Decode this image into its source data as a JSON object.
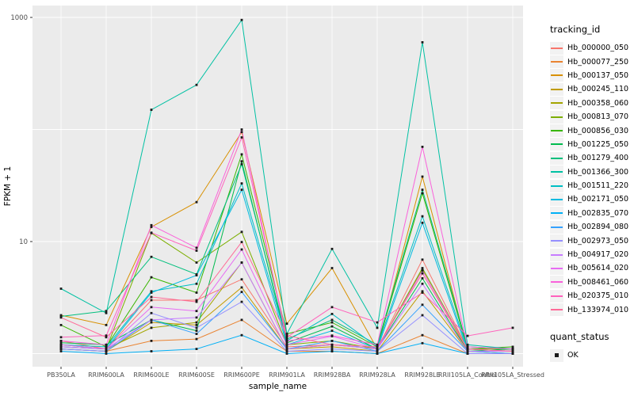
{
  "figure": {
    "background": "#ffffff",
    "panel_background": "#EBEBEB",
    "gridline_color": "#FFFFFF",
    "tick_label_color": "#4D4D4D",
    "marker_color": "#1a1a1a"
  },
  "legend": {
    "tracking_title": "tracking_id",
    "quant_title": "quant_status",
    "quant_entry": "OK"
  },
  "chart_data": {
    "type": "line",
    "title": "",
    "xlabel": "sample_name",
    "ylabel": "FPKM + 1",
    "y_scale": "log10",
    "y_tick_labels": [
      "1000",
      "10"
    ],
    "y_tick_values": [
      1000,
      10
    ],
    "y_gridlines": [
      1,
      10,
      100,
      1000
    ],
    "ylim_log": [
      0.88,
      1100
    ],
    "legend_position": "right",
    "grid": true,
    "point_shape": "filled-square",
    "categories": [
      "PB350LA",
      "RRIM600LA",
      "RRIM600LE",
      "RRIM600SE",
      "RRIM600PE",
      "RRIM901LA",
      "RRIM928BA",
      "RRIM928LA",
      "RRIM928LE",
      "RRII105LA_Control",
      "RRII105LA_Stressed"
    ],
    "series": [
      {
        "name": "Hb_000000_050",
        "color": "#F8766D",
        "values": [
          1.3,
          1.1,
          3.0,
          3.0,
          4.6,
          1.15,
          1.2,
          1.1,
          6.9,
          1.1,
          1.05
        ]
      },
      {
        "name": "Hb_000077_250",
        "color": "#EA8331",
        "values": [
          1.1,
          1.05,
          1.3,
          1.35,
          2.0,
          1.05,
          1.05,
          1.0,
          1.46,
          1.0,
          1.0
        ]
      },
      {
        "name": "Hb_000137_050",
        "color": "#D89000",
        "values": [
          2.2,
          1.8,
          13.5,
          22.5,
          95,
          1.85,
          5.8,
          1.1,
          38,
          1.1,
          1.05
        ]
      },
      {
        "name": "Hb_000245_110",
        "color": "#C09B00",
        "values": [
          1.1,
          1.05,
          1.9,
          1.8,
          3.9,
          1.1,
          1.15,
          1.05,
          3.6,
          1.05,
          1.0
        ]
      },
      {
        "name": "Hb_000358_060",
        "color": "#A3A500",
        "values": [
          1.15,
          1.1,
          1.7,
          1.9,
          6.5,
          1.1,
          1.2,
          1.1,
          5.6,
          1.05,
          1.05
        ]
      },
      {
        "name": "Hb_000813_070",
        "color": "#7CAE00",
        "values": [
          1.2,
          1.1,
          11.9,
          6.5,
          12.2,
          1.2,
          1.3,
          1.1,
          5.8,
          1.1,
          1.1
        ]
      },
      {
        "name": "Hb_000856_030",
        "color": "#39B600",
        "values": [
          1.8,
          1.15,
          4.8,
          3.5,
          60,
          1.5,
          1.9,
          1.15,
          27,
          1.1,
          1.15
        ]
      },
      {
        "name": "Hb_001225_050",
        "color": "#00BB4E",
        "values": [
          1.25,
          1.2,
          2.0,
          1.6,
          52,
          1.25,
          1.75,
          1.1,
          4.7,
          1.05,
          1.1
        ]
      },
      {
        "name": "Hb_001279_400",
        "color": "#00BF7D",
        "values": [
          2.15,
          2.4,
          7.3,
          5.1,
          49,
          1.35,
          2.0,
          1.2,
          29,
          1.15,
          1.1
        ]
      },
      {
        "name": "Hb_001366_300",
        "color": "#00C1A3",
        "values": [
          3.8,
          2.3,
          150,
          250,
          950,
          1.5,
          8.6,
          1.7,
          600,
          1.2,
          1.1
        ]
      },
      {
        "name": "Hb_001511_220",
        "color": "#00BFC4",
        "values": [
          1.2,
          1.15,
          3.6,
          4.2,
          33,
          1.3,
          2.26,
          1.15,
          16.8,
          1.1,
          1.05
        ]
      },
      {
        "name": "Hb_002171_050",
        "color": "#00BAE0",
        "values": [
          1.15,
          1.1,
          3.5,
          5.0,
          29,
          1.2,
          1.6,
          1.1,
          14.7,
          1.05,
          1.05
        ]
      },
      {
        "name": "Hb_002835_070",
        "color": "#00B0F6",
        "values": [
          1.05,
          1.0,
          1.05,
          1.1,
          1.46,
          1.0,
          1.05,
          1.0,
          1.24,
          1.0,
          1.0
        ]
      },
      {
        "name": "Hb_002894_080",
        "color": "#35A2FF",
        "values": [
          1.1,
          1.05,
          2.0,
          1.5,
          3.55,
          1.1,
          1.3,
          1.05,
          2.73,
          1.05,
          1.0
        ]
      },
      {
        "name": "Hb_002973_050",
        "color": "#9590FF",
        "values": [
          1.1,
          1.05,
          2.3,
          1.7,
          2.9,
          1.05,
          1.1,
          1.05,
          2.2,
          1.0,
          1.0
        ]
      },
      {
        "name": "Hb_004917_020",
        "color": "#C77CFF",
        "values": [
          1.15,
          1.1,
          2.0,
          2.1,
          6.5,
          1.1,
          1.2,
          1.1,
          4.2,
          1.05,
          1.05
        ]
      },
      {
        "name": "Hb_005614_020",
        "color": "#E76BF3",
        "values": [
          1.2,
          1.1,
          2.6,
          2.4,
          8.5,
          1.2,
          1.43,
          1.1,
          5.5,
          1.1,
          1.05
        ]
      },
      {
        "name": "Hb_008461_060",
        "color": "#FA62DB",
        "values": [
          1.3,
          1.2,
          14,
          8.8,
          100,
          1.3,
          1.45,
          1.2,
          70,
          1.15,
          1.1
        ]
      },
      {
        "name": "Hb_020375_010",
        "color": "#FF62BC",
        "values": [
          1.4,
          1.45,
          12,
          8.3,
          85,
          1.4,
          2.6,
          1.9,
          3.5,
          1.44,
          1.7
        ]
      },
      {
        "name": "Hb_133974_010",
        "color": "#FF6A98",
        "values": [
          2.1,
          1.4,
          3.2,
          2.9,
          9.9,
          1.45,
          1.2,
          1.15,
          5.2,
          1.1,
          1.05
        ]
      }
    ]
  }
}
